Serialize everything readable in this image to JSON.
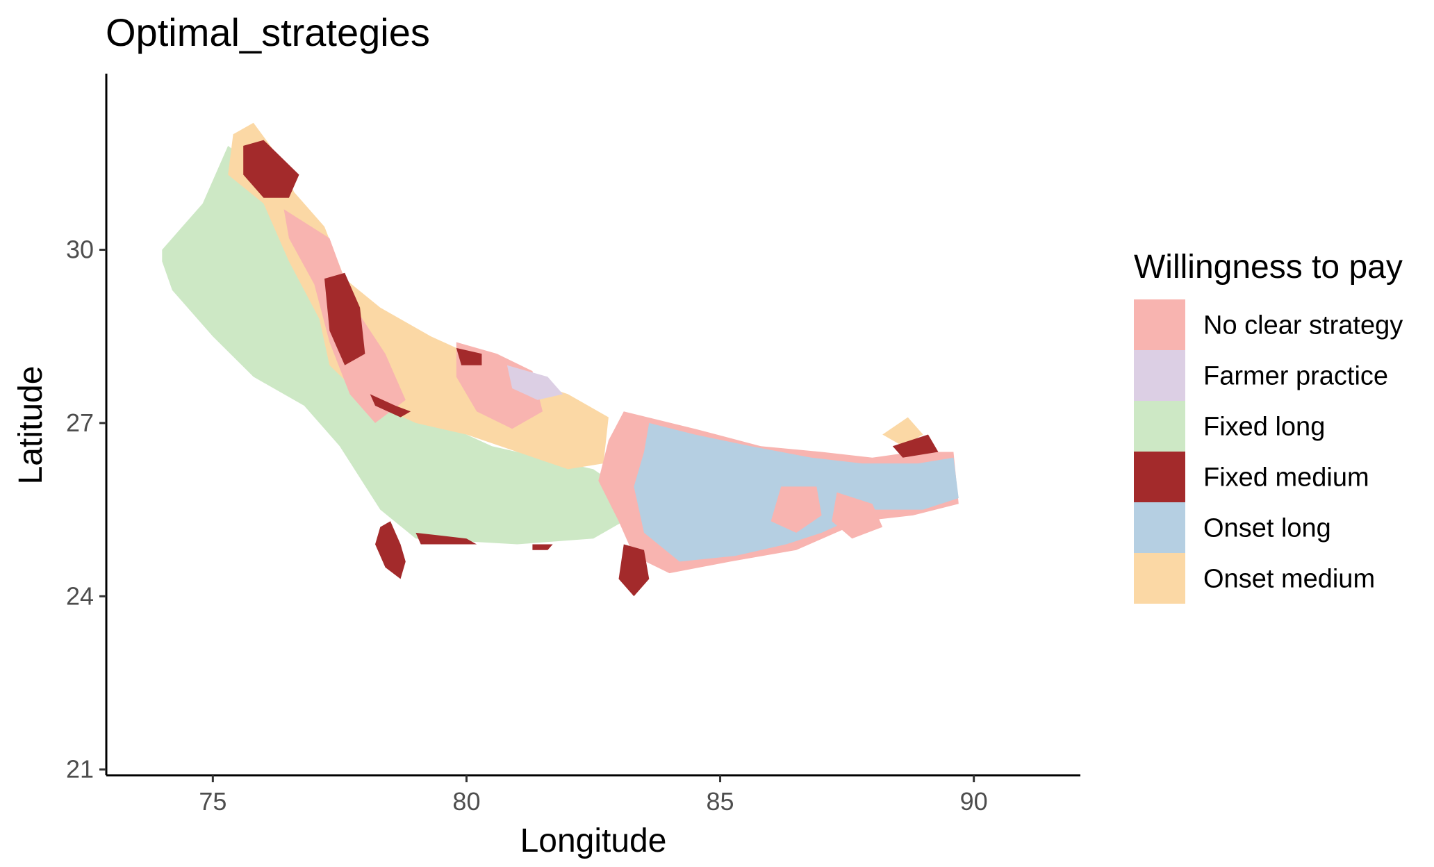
{
  "chart_data": {
    "type": "map",
    "title": "Optimal_strategies",
    "xlabel": "Longitude",
    "ylabel": "Latitude",
    "x_ticks": [
      75,
      80,
      85,
      90
    ],
    "y_ticks": [
      21,
      24,
      27,
      30
    ],
    "xlim": [
      72.9,
      92.1
    ],
    "ylim": [
      20.9,
      33.05
    ],
    "grid": false,
    "legend": {
      "title": "Willingness to pay",
      "position": "right",
      "items": [
        {
          "label": "No clear strategy",
          "color": "#F8B4B0"
        },
        {
          "label": "Farmer practice",
          "color": "#DCCFE4"
        },
        {
          "label": "Fixed long",
          "color": "#CDE8C5"
        },
        {
          "label": "Fixed medium",
          "color": "#A32A2B"
        },
        {
          "label": "Onset long",
          "color": "#B5CFE2"
        },
        {
          "label": "Onset medium",
          "color": "#FBD8A5"
        }
      ]
    },
    "regions": [
      {
        "strategy": "Fixed long",
        "polygon": [
          [
            74.0,
            30.0
          ],
          [
            74.8,
            30.8
          ],
          [
            75.3,
            31.8
          ],
          [
            75.9,
            31.4
          ],
          [
            76.4,
            30.3
          ],
          [
            77.0,
            29.3
          ],
          [
            77.8,
            28.0
          ],
          [
            78.5,
            27.2
          ],
          [
            79.5,
            27.0
          ],
          [
            80.5,
            26.6
          ],
          [
            81.5,
            26.4
          ],
          [
            82.5,
            26.2
          ],
          [
            83.0,
            25.9
          ],
          [
            83.3,
            25.4
          ],
          [
            82.5,
            25.0
          ],
          [
            81.0,
            24.9
          ],
          [
            79.0,
            25.0
          ],
          [
            78.3,
            25.5
          ],
          [
            77.5,
            26.6
          ],
          [
            76.8,
            27.3
          ],
          [
            75.8,
            27.8
          ],
          [
            75.0,
            28.5
          ],
          [
            74.2,
            29.3
          ],
          [
            74.0,
            29.8
          ]
        ]
      },
      {
        "strategy": "Onset medium",
        "polygon": [
          [
            75.4,
            32.0
          ],
          [
            75.8,
            32.2
          ],
          [
            76.3,
            31.6
          ],
          [
            76.6,
            31.0
          ],
          [
            77.2,
            30.4
          ],
          [
            77.6,
            29.5
          ],
          [
            78.3,
            29.0
          ],
          [
            79.3,
            28.5
          ],
          [
            80.3,
            28.1
          ],
          [
            81.0,
            27.8
          ],
          [
            82.0,
            27.5
          ],
          [
            82.8,
            27.1
          ],
          [
            82.7,
            26.3
          ],
          [
            82.0,
            26.2
          ],
          [
            81.0,
            26.5
          ],
          [
            80.0,
            26.8
          ],
          [
            79.0,
            27.0
          ],
          [
            78.0,
            27.4
          ],
          [
            77.3,
            28.0
          ],
          [
            77.1,
            28.8
          ],
          [
            76.5,
            29.8
          ],
          [
            76.0,
            30.8
          ],
          [
            75.3,
            31.3
          ]
        ]
      },
      {
        "strategy": "No clear strategy",
        "polygon": [
          [
            76.4,
            30.7
          ],
          [
            77.3,
            30.2
          ],
          [
            77.8,
            29.0
          ],
          [
            78.4,
            28.2
          ],
          [
            78.8,
            27.4
          ],
          [
            78.2,
            27.0
          ],
          [
            77.7,
            27.5
          ],
          [
            77.3,
            28.4
          ],
          [
            77.0,
            29.4
          ],
          [
            76.5,
            30.2
          ]
        ]
      },
      {
        "strategy": "No clear strategy",
        "polygon": [
          [
            79.8,
            28.4
          ],
          [
            80.6,
            28.2
          ],
          [
            81.3,
            27.9
          ],
          [
            81.5,
            27.2
          ],
          [
            80.9,
            26.9
          ],
          [
            80.2,
            27.2
          ],
          [
            79.8,
            27.8
          ]
        ]
      },
      {
        "strategy": "No clear strategy",
        "polygon": [
          [
            83.1,
            27.2
          ],
          [
            84.5,
            26.9
          ],
          [
            85.8,
            26.6
          ],
          [
            87.0,
            26.5
          ],
          [
            88.0,
            26.4
          ],
          [
            88.8,
            26.5
          ],
          [
            89.6,
            26.5
          ],
          [
            89.7,
            25.6
          ],
          [
            88.8,
            25.4
          ],
          [
            87.8,
            25.3
          ],
          [
            86.5,
            24.8
          ],
          [
            85.2,
            24.6
          ],
          [
            84.0,
            24.4
          ],
          [
            83.3,
            24.7
          ],
          [
            83.0,
            25.3
          ],
          [
            82.6,
            26.0
          ],
          [
            82.8,
            26.7
          ]
        ]
      },
      {
        "strategy": "Onset long",
        "polygon": [
          [
            83.6,
            27.0
          ],
          [
            84.5,
            26.8
          ],
          [
            85.6,
            26.6
          ],
          [
            86.8,
            26.4
          ],
          [
            87.8,
            26.3
          ],
          [
            88.9,
            26.3
          ],
          [
            89.6,
            26.4
          ],
          [
            89.7,
            25.7
          ],
          [
            89.0,
            25.5
          ],
          [
            88.0,
            25.5
          ],
          [
            87.0,
            25.1
          ],
          [
            86.3,
            24.9
          ],
          [
            85.3,
            24.7
          ],
          [
            84.2,
            24.6
          ],
          [
            83.5,
            25.1
          ],
          [
            83.3,
            25.9
          ],
          [
            83.5,
            26.5
          ]
        ]
      },
      {
        "strategy": "No clear strategy",
        "polygon": [
          [
            86.2,
            25.9
          ],
          [
            86.9,
            25.9
          ],
          [
            87.0,
            25.4
          ],
          [
            86.5,
            25.1
          ],
          [
            86.0,
            25.3
          ]
        ]
      },
      {
        "strategy": "No clear strategy",
        "polygon": [
          [
            87.3,
            25.8
          ],
          [
            88.0,
            25.6
          ],
          [
            88.2,
            25.2
          ],
          [
            87.6,
            25.0
          ],
          [
            87.2,
            25.3
          ]
        ]
      },
      {
        "strategy": "Farmer practice",
        "polygon": [
          [
            80.8,
            28.0
          ],
          [
            81.6,
            27.8
          ],
          [
            81.9,
            27.5
          ],
          [
            81.4,
            27.4
          ],
          [
            80.9,
            27.6
          ]
        ]
      },
      {
        "strategy": "Fixed medium",
        "polygon": [
          [
            75.6,
            31.8
          ],
          [
            76.0,
            31.9
          ],
          [
            76.7,
            31.3
          ],
          [
            76.5,
            30.9
          ],
          [
            76.0,
            30.9
          ],
          [
            75.6,
            31.3
          ]
        ]
      },
      {
        "strategy": "Fixed medium",
        "polygon": [
          [
            77.2,
            29.5
          ],
          [
            77.6,
            29.6
          ],
          [
            77.9,
            29.0
          ],
          [
            78.0,
            28.2
          ],
          [
            77.6,
            28.0
          ],
          [
            77.3,
            28.6
          ]
        ]
      },
      {
        "strategy": "Fixed medium",
        "polygon": [
          [
            78.1,
            27.5
          ],
          [
            78.6,
            27.3
          ],
          [
            78.9,
            27.2
          ],
          [
            78.7,
            27.1
          ],
          [
            78.2,
            27.3
          ]
        ]
      },
      {
        "strategy": "Fixed medium",
        "polygon": [
          [
            79.8,
            28.3
          ],
          [
            80.3,
            28.2
          ],
          [
            80.3,
            28.0
          ],
          [
            79.9,
            28.0
          ]
        ]
      },
      {
        "strategy": "Fixed medium",
        "polygon": [
          [
            78.3,
            25.2
          ],
          [
            78.5,
            25.3
          ],
          [
            78.7,
            24.9
          ],
          [
            78.8,
            24.6
          ],
          [
            78.7,
            24.3
          ],
          [
            78.4,
            24.5
          ],
          [
            78.2,
            24.9
          ]
        ]
      },
      {
        "strategy": "Fixed medium",
        "polygon": [
          [
            83.1,
            24.9
          ],
          [
            83.5,
            24.8
          ],
          [
            83.6,
            24.3
          ],
          [
            83.3,
            24.0
          ],
          [
            83.0,
            24.3
          ]
        ]
      },
      {
        "strategy": "Onset medium",
        "polygon": [
          [
            88.2,
            26.8
          ],
          [
            88.7,
            27.1
          ],
          [
            89.0,
            26.8
          ],
          [
            88.6,
            26.6
          ]
        ]
      },
      {
        "strategy": "Fixed medium",
        "polygon": [
          [
            88.4,
            26.6
          ],
          [
            89.1,
            26.8
          ],
          [
            89.3,
            26.5
          ],
          [
            88.6,
            26.4
          ]
        ]
      },
      {
        "strategy": "Fixed medium",
        "polygon": [
          [
            79.0,
            25.1
          ],
          [
            80.0,
            25.0
          ],
          [
            80.2,
            24.9
          ],
          [
            79.1,
            24.9
          ]
        ]
      },
      {
        "strategy": "Fixed medium",
        "polygon": [
          [
            81.3,
            24.9
          ],
          [
            81.7,
            24.9
          ],
          [
            81.6,
            24.8
          ],
          [
            81.3,
            24.8
          ]
        ]
      }
    ]
  }
}
